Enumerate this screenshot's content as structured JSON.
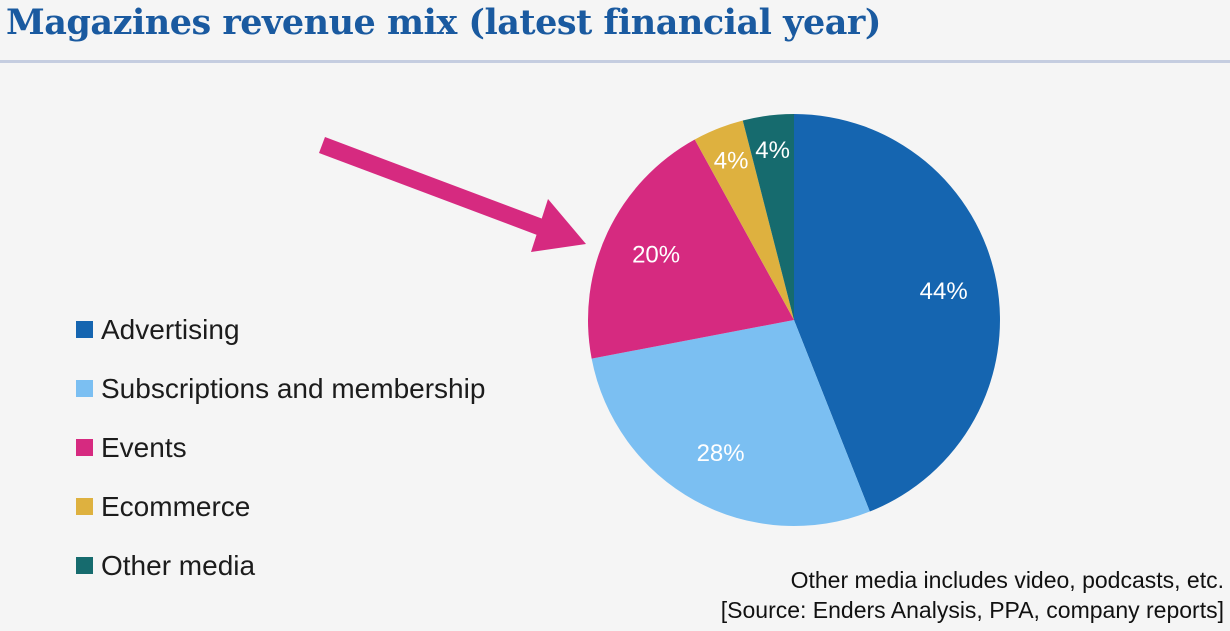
{
  "title": "Magazines revenue mix (latest financial year)",
  "chart_data": {
    "type": "pie",
    "title": "Magazines revenue mix (latest financial year)",
    "legend_position": "left",
    "slices": [
      {
        "label": "Advertising",
        "value": 44,
        "display": "44%",
        "color": "#1565b0"
      },
      {
        "label": "Subscriptions and membership",
        "value": 28,
        "display": "28%",
        "color": "#7bbff2"
      },
      {
        "label": "Events",
        "value": 20,
        "display": "20%",
        "color": "#d62a80"
      },
      {
        "label": "Ecommerce",
        "value": 4,
        "display": "4%",
        "color": "#deb13f"
      },
      {
        "label": "Other media",
        "value": 4,
        "display": "4%",
        "color": "#166b6e"
      }
    ]
  },
  "notes": {
    "line1": "Other media includes video, podcasts, etc.",
    "line2": "[Source: Enders Analysis, PPA, company reports]"
  },
  "annotation": {
    "arrow_color": "#d62a80"
  }
}
